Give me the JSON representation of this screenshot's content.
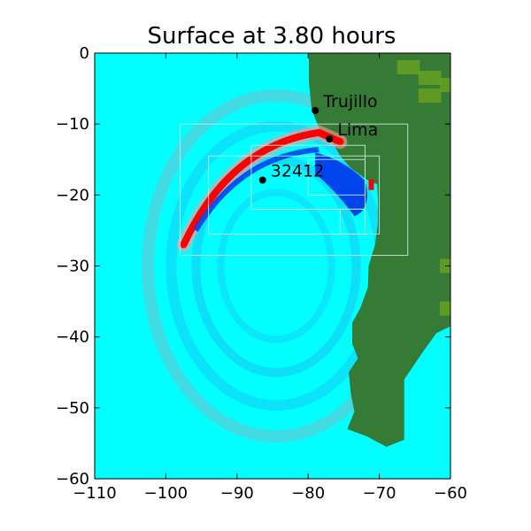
{
  "chart_data": {
    "type": "heatmap",
    "title": "Surface at 3.80 hours",
    "xlim": [
      -110,
      -60
    ],
    "ylim": [
      -60,
      0
    ],
    "x_ticks": [
      {
        "value": -110,
        "label": "−110"
      },
      {
        "value": -100,
        "label": "−100"
      },
      {
        "value": -90,
        "label": "−90"
      },
      {
        "value": -80,
        "label": "−80"
      },
      {
        "value": -70,
        "label": "−70"
      },
      {
        "value": -60,
        "label": "−60"
      }
    ],
    "y_ticks": [
      {
        "value": 0,
        "label": "0"
      },
      {
        "value": -10,
        "label": "−10"
      },
      {
        "value": -20,
        "label": "−20"
      },
      {
        "value": -30,
        "label": "−30"
      },
      {
        "value": -40,
        "label": "−40"
      },
      {
        "value": -50,
        "label": "−50"
      },
      {
        "value": -60,
        "label": "−60"
      }
    ],
    "points": [
      {
        "name": "Trujillo",
        "lon": -79.0,
        "lat": -8.1
      },
      {
        "name": "Lima",
        "lon": -77.0,
        "lat": -12.1
      },
      {
        "name": "32412",
        "lon": -86.4,
        "lat": -17.9
      }
    ],
    "colors": {
      "sea": "#00ffff",
      "land": "#357a35",
      "land_high": "#6aa322",
      "crest": "#ff0000",
      "trough": "#0044ee",
      "wake": "#20b0f0"
    }
  }
}
